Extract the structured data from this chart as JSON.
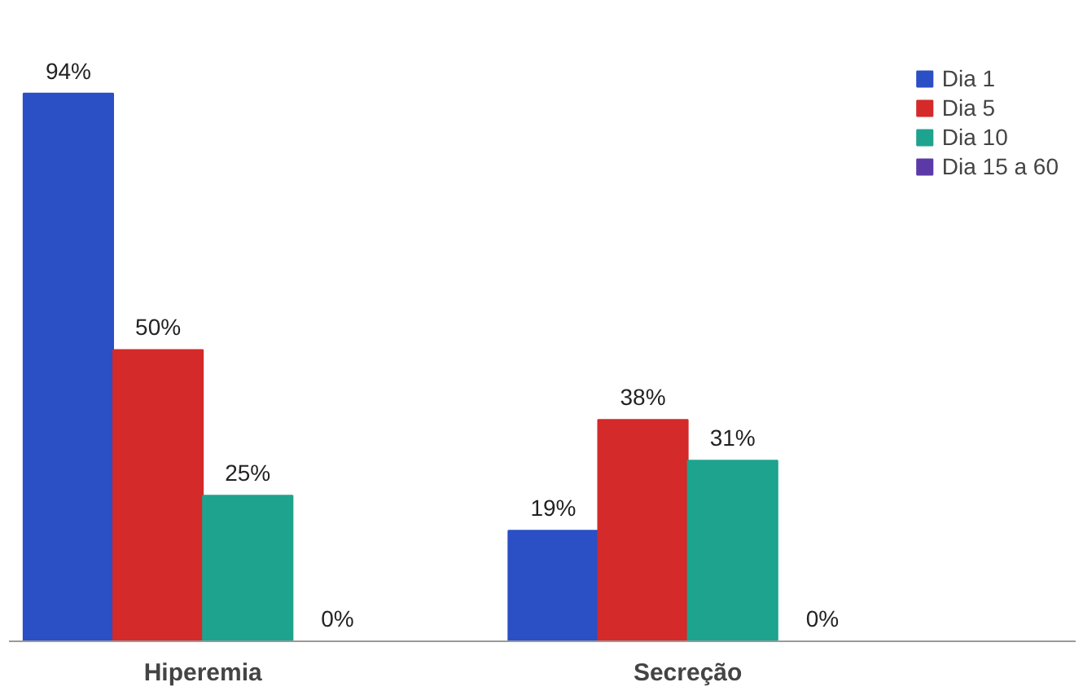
{
  "chart_data": {
    "type": "bar",
    "categories": [
      "Hiperemia",
      "Secreção"
    ],
    "series": [
      {
        "name": "Dia 1",
        "color": "#2b4fc4",
        "values": [
          94,
          19
        ],
        "value_labels": [
          "94%",
          "19%"
        ]
      },
      {
        "name": "Dia 5",
        "color": "#d42a2a",
        "values": [
          50,
          38
        ],
        "value_labels": [
          "50%",
          "38%"
        ]
      },
      {
        "name": "Dia 10",
        "color": "#1ea38e",
        "values": [
          25,
          31
        ],
        "value_labels": [
          "25%",
          "31%"
        ]
      },
      {
        "name": "Dia 15 a 60",
        "color": "#5b3aa8",
        "values": [
          0,
          0
        ],
        "value_labels": [
          "0%",
          "0%"
        ]
      }
    ],
    "legend": "right",
    "grid": false
  }
}
